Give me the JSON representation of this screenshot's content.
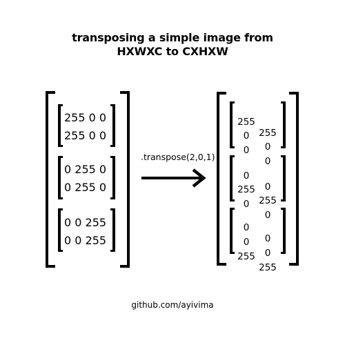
{
  "title": {
    "line1": "transposing a simple image from",
    "line2": "HXWXC to CXHXW"
  },
  "left_tensor": {
    "channels": [
      {
        "rows": [
          "255 0 0",
          "255 0 0"
        ]
      },
      {
        "rows": [
          "0 255 0",
          "0 255 0"
        ]
      },
      {
        "rows": [
          "0 0 255",
          "0 0 255"
        ]
      }
    ]
  },
  "operation": {
    "label": ".transpose(2,0,1)",
    "arrow_icon": "right-arrow-icon"
  },
  "right_tensor": {
    "blocks": [
      {
        "rows": [
          [
            "255",
            "255"
          ],
          [
            "0",
            "0"
          ],
          [
            "0",
            "0"
          ]
        ]
      },
      {
        "rows": [
          [
            "0",
            "0"
          ],
          [
            "255",
            "255"
          ],
          [
            "0",
            "0"
          ]
        ]
      },
      {
        "rows": [
          [
            "0",
            "0"
          ],
          [
            "0",
            "0"
          ],
          [
            "255",
            "255"
          ]
        ]
      }
    ]
  },
  "footer": {
    "credit": "github.com/ayivima"
  }
}
